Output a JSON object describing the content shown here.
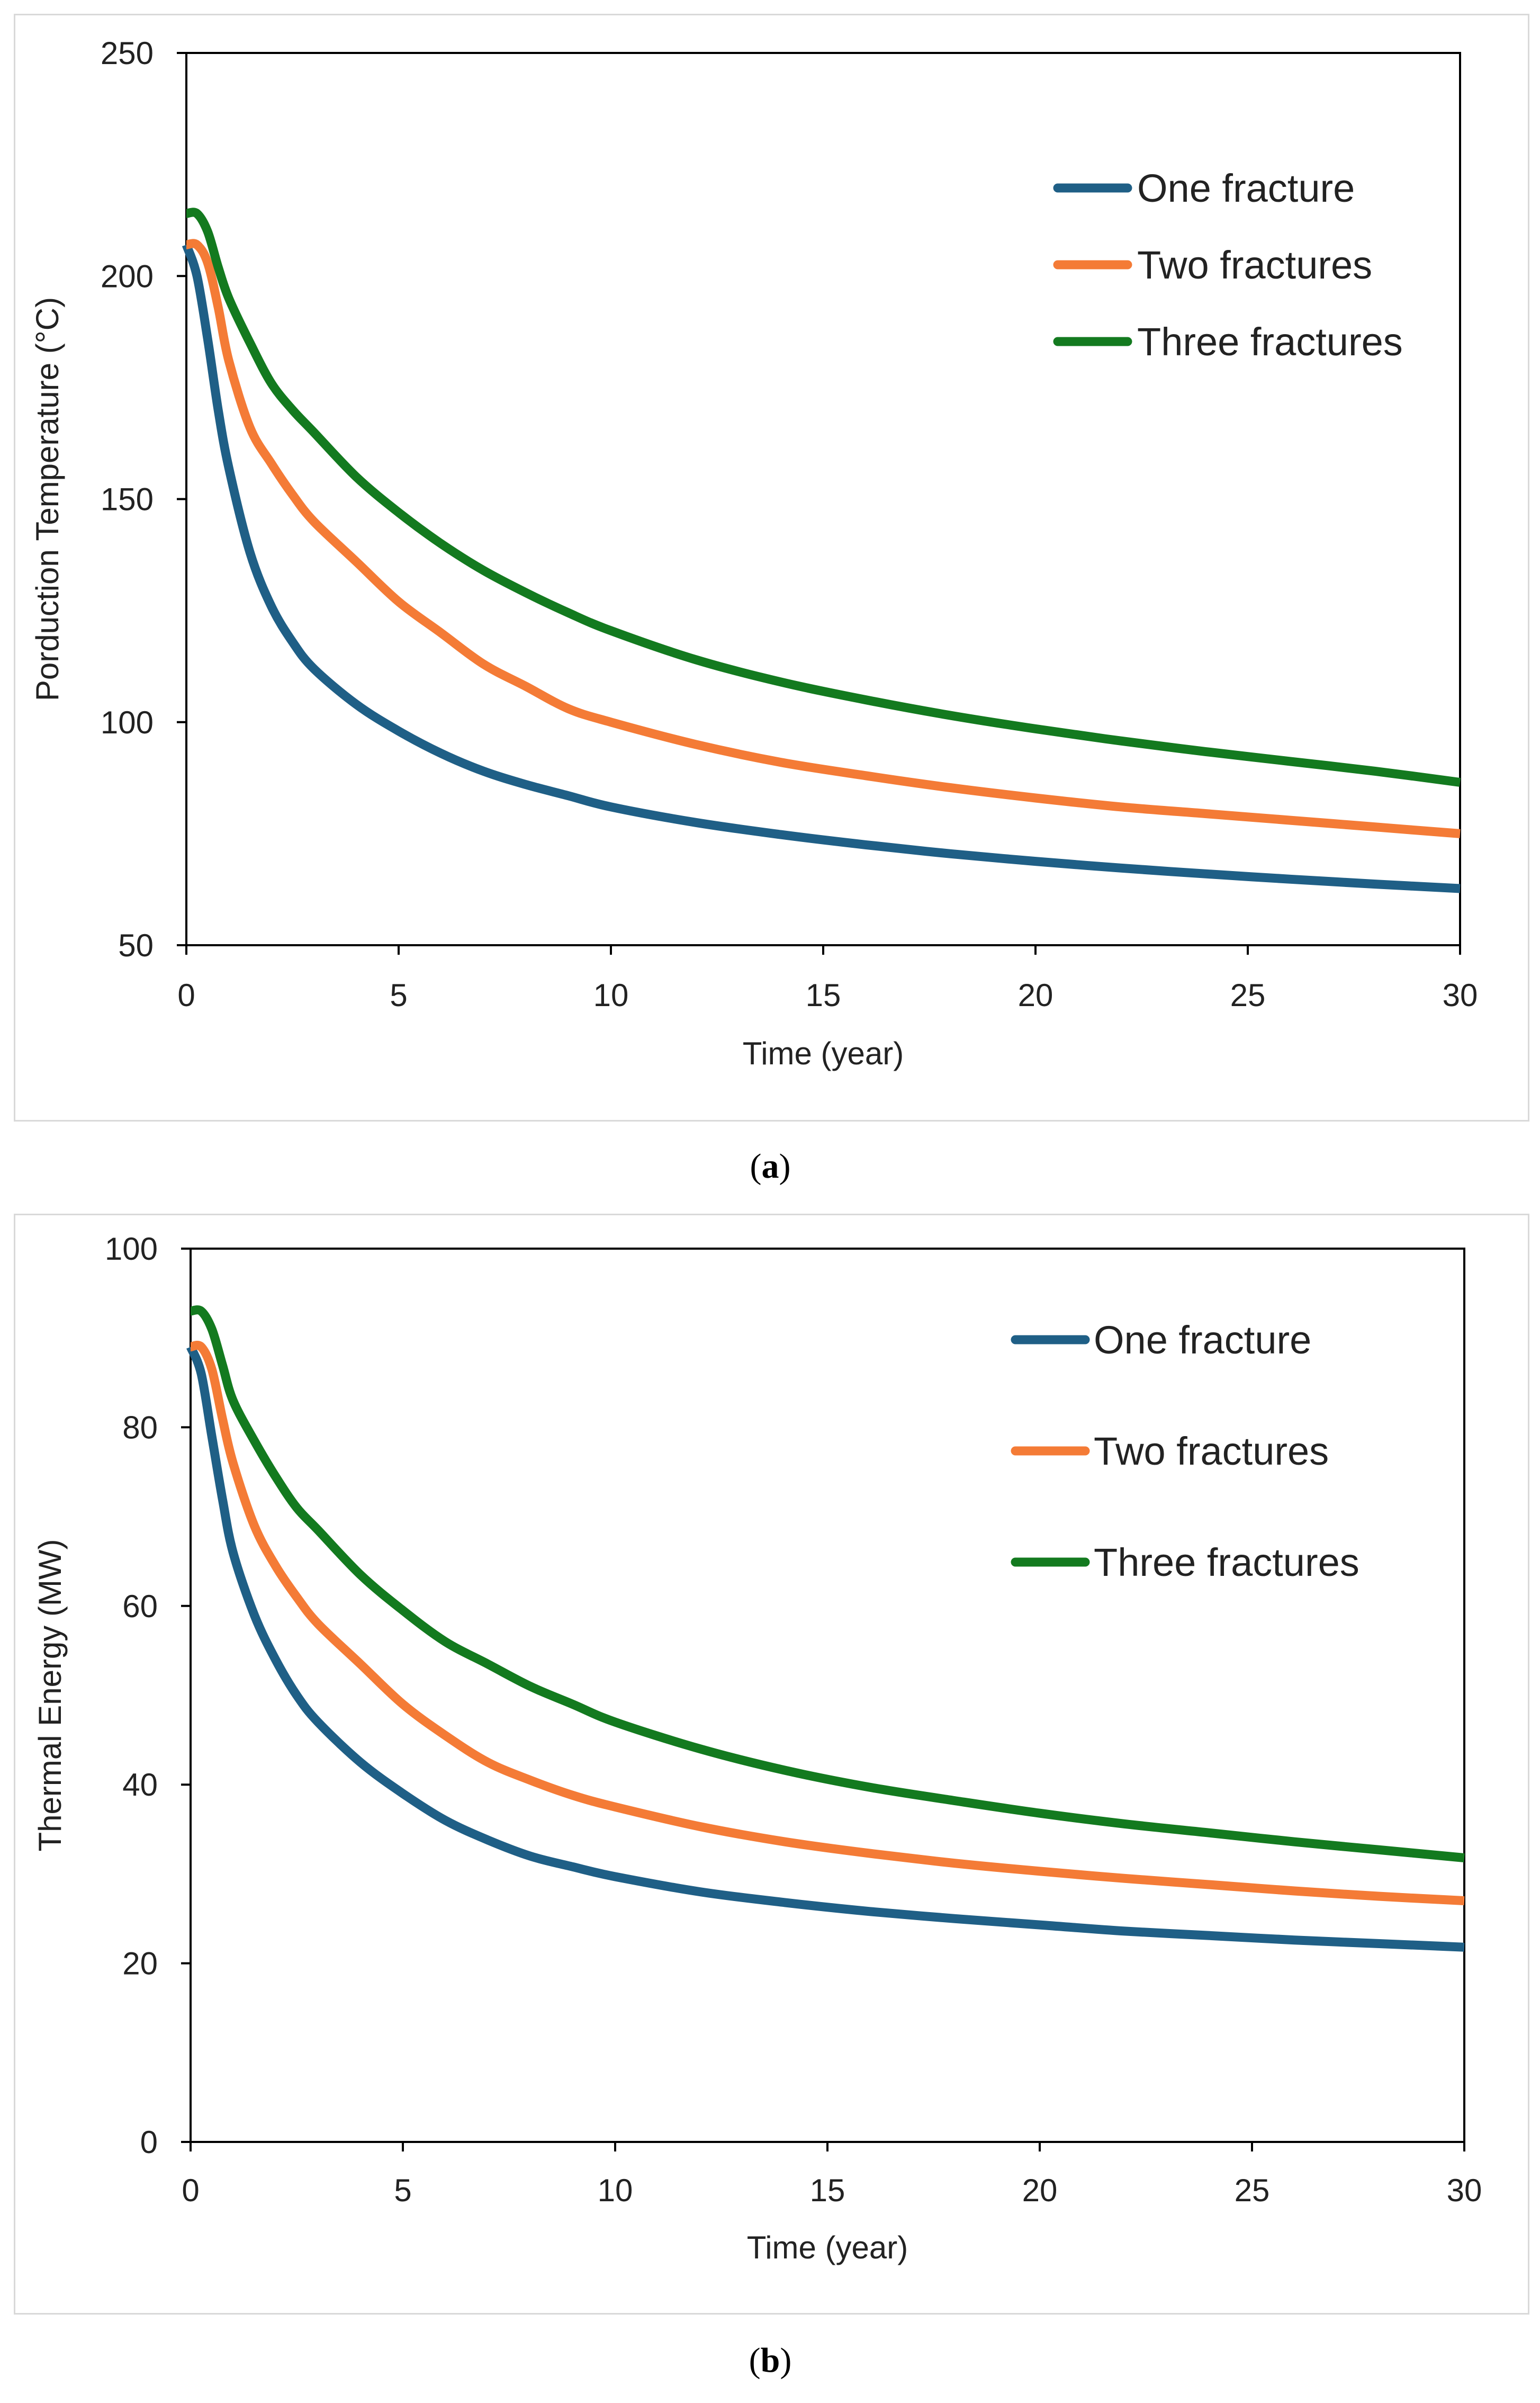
{
  "chart_data": [
    {
      "type": "line",
      "panel": "a",
      "title": "",
      "xlabel": "Time (year)",
      "ylabel": "Porduction Temperature (°C)",
      "xlim": [
        0,
        30
      ],
      "ylim": [
        50,
        250
      ],
      "xticks": [
        0,
        5,
        10,
        15,
        20,
        25,
        30
      ],
      "yticks": [
        50,
        100,
        150,
        200,
        250
      ],
      "legend_position": "top-right",
      "series": [
        {
          "name": "One fracture",
          "color": "#1f5f86",
          "x": [
            0,
            0.25,
            0.5,
            0.75,
            1,
            1.5,
            2,
            2.5,
            3,
            4,
            5,
            6,
            7,
            8,
            9,
            10,
            12,
            14,
            16,
            18,
            20,
            22,
            24,
            26,
            28,
            30
          ],
          "y": [
            207,
            200,
            186,
            170,
            157,
            138,
            126,
            118,
            112,
            104,
            98,
            93,
            89,
            86,
            83.5,
            81,
            77.5,
            74.8,
            72.5,
            70.5,
            68.8,
            67.3,
            66,
            64.8,
            63.7,
            62.7
          ]
        },
        {
          "name": "Two fractures",
          "color": "#f47b36",
          "x": [
            0,
            0.25,
            0.5,
            0.75,
            1,
            1.5,
            2,
            2.5,
            3,
            4,
            5,
            6,
            7,
            8,
            9,
            10,
            12,
            14,
            16,
            18,
            20,
            22,
            24,
            26,
            28,
            30
          ],
          "y": [
            207,
            207,
            203,
            193,
            181,
            166,
            158,
            151,
            145,
            136,
            127,
            120,
            113,
            108,
            103,
            100,
            95,
            91,
            88,
            85.3,
            83,
            81,
            79.5,
            78,
            76.5,
            75
          ]
        },
        {
          "name": "Three fractures",
          "color": "#137a1f",
          "x": [
            0,
            0.25,
            0.5,
            0.75,
            1,
            1.5,
            2,
            2.5,
            3,
            4,
            5,
            6,
            7,
            8,
            9,
            10,
            12,
            14,
            16,
            18,
            20,
            22,
            24,
            26,
            28,
            30
          ],
          "y": [
            214,
            214,
            210,
            202,
            195,
            185,
            176,
            170,
            165,
            155,
            147,
            140,
            134,
            129,
            124.5,
            120.5,
            114,
            109,
            105,
            101.5,
            98.5,
            95.8,
            93.4,
            91.2,
            89,
            86.5
          ]
        }
      ]
    },
    {
      "type": "line",
      "panel": "b",
      "title": "",
      "xlabel": "Time (year)",
      "ylabel": "Thermal Energy (MW)",
      "xlim": [
        0,
        30
      ],
      "ylim": [
        0,
        100
      ],
      "xticks": [
        0,
        5,
        10,
        15,
        20,
        25,
        30
      ],
      "yticks": [
        0,
        20,
        40,
        60,
        80,
        100
      ],
      "legend_position": "top-right",
      "series": [
        {
          "name": "One fracture",
          "color": "#1f5f86",
          "x": [
            0,
            0.25,
            0.5,
            0.75,
            1,
            1.5,
            2,
            2.5,
            3,
            4,
            5,
            6,
            7,
            8,
            9,
            10,
            12,
            14,
            16,
            18,
            20,
            22,
            24,
            26,
            28,
            30
          ],
          "y": [
            89,
            86,
            79,
            72,
            66,
            59,
            54,
            50,
            47,
            42.5,
            39,
            36,
            33.8,
            32,
            30.8,
            29.7,
            28,
            26.8,
            25.8,
            25,
            24.3,
            23.6,
            23.1,
            22.6,
            22.2,
            21.8
          ]
        },
        {
          "name": "Two fractures",
          "color": "#f47b36",
          "x": [
            0,
            0.25,
            0.5,
            0.75,
            1,
            1.5,
            2,
            2.5,
            3,
            4,
            5,
            6,
            7,
            8,
            9,
            10,
            12,
            14,
            16,
            18,
            20,
            22,
            24,
            26,
            28,
            30
          ],
          "y": [
            89,
            89,
            86.5,
            81,
            76,
            69,
            64.5,
            61,
            58,
            53.5,
            49,
            45.5,
            42.5,
            40.5,
            38.8,
            37.5,
            35.3,
            33.6,
            32.3,
            31.2,
            30.3,
            29.5,
            28.8,
            28.1,
            27.5,
            27
          ]
        },
        {
          "name": "Three fractures",
          "color": "#137a1f",
          "x": [
            0,
            0.25,
            0.5,
            0.75,
            1,
            1.5,
            2,
            2.5,
            3,
            4,
            5,
            6,
            7,
            8,
            9,
            10,
            12,
            14,
            16,
            18,
            20,
            22,
            24,
            26,
            28,
            30
          ],
          "y": [
            93,
            93,
            91,
            87,
            83,
            78.5,
            74.5,
            71,
            68.5,
            63.5,
            59.5,
            56,
            53.5,
            51,
            49,
            47,
            44,
            41.6,
            39.7,
            38.2,
            36.8,
            35.6,
            34.6,
            33.6,
            32.7,
            31.8
          ]
        }
      ]
    }
  ],
  "captions": {
    "a": "a",
    "b": "b"
  }
}
